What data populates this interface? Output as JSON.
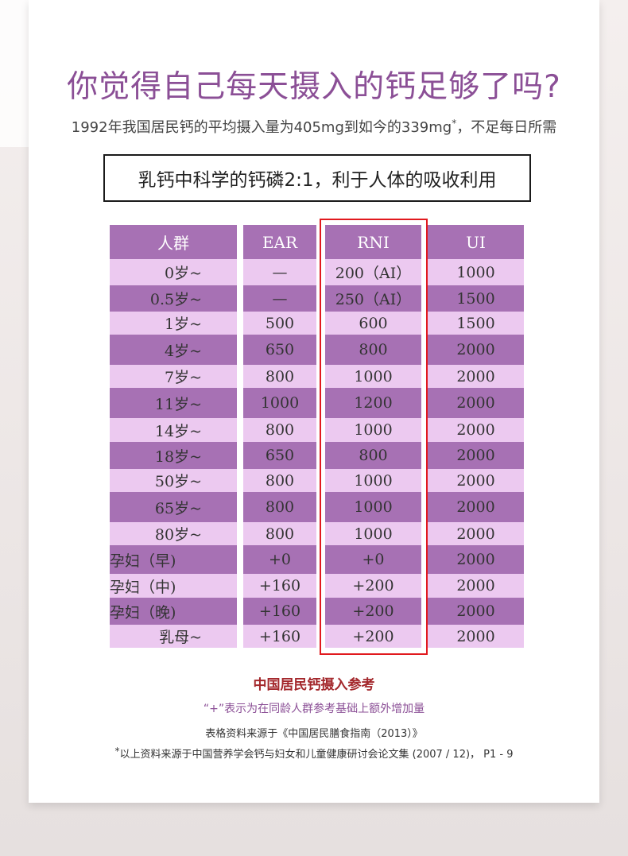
{
  "title": "你觉得自己每天摄入的钙足够了吗?",
  "subtitle": {
    "text": "1992年我国居民钙的平均摄入量为405mg到如今的339mg",
    "mark": "*",
    "tail": "，不足每日所需"
  },
  "highlight_box": "乳钙中科学的钙磷2:1，利于人体的吸收利用",
  "table": {
    "headers": [
      "人群",
      "EAR",
      "RNI",
      "UI"
    ],
    "rows": [
      [
        "0岁~",
        "—",
        "200（AI）",
        "1000"
      ],
      [
        "0.5岁~",
        "—",
        "250（AI）",
        "1500"
      ],
      [
        "1岁~",
        "500",
        "600",
        "1500"
      ],
      [
        "4岁~",
        "650",
        "800",
        "2000"
      ],
      [
        "7岁~",
        "800",
        "1000",
        "2000"
      ],
      [
        "11岁~",
        "1000",
        "1200",
        "2000"
      ],
      [
        "14岁~",
        "800",
        "1000",
        "2000"
      ],
      [
        "18岁~",
        "650",
        "800",
        "2000"
      ],
      [
        "50岁~",
        "800",
        "1000",
        "2000"
      ],
      [
        "65岁~",
        "800",
        "1000",
        "2000"
      ],
      [
        "80岁~",
        "800",
        "1000",
        "2000"
      ],
      [
        "孕妇（早)",
        "+0",
        "+0",
        "2000"
      ],
      [
        "孕妇（中)",
        "+160",
        "+200",
        "2000"
      ],
      [
        "孕妇（晚)",
        "+160",
        "+200",
        "2000"
      ],
      [
        "乳母~",
        "+160",
        "+200",
        "2000"
      ]
    ]
  },
  "caption": "中国居民钙摄入参考",
  "note": "“+”表示为在同龄人群参考基础上额外增加量",
  "source_table": "表格资料来源于《中国居民膳食指南（2013）》",
  "source_footnote": {
    "mark": "*",
    "text": "以上资料来源于中国营养学会钙与妇女和儿童健康研讨会论文集 (2007 / 12)， P1 - 9"
  },
  "colors": {
    "title": "#8b4f96",
    "row_dark": "#a771b4",
    "row_light": "#ecc9f0",
    "highlight_frame": "#e1191e",
    "caption": "#a3272b"
  }
}
